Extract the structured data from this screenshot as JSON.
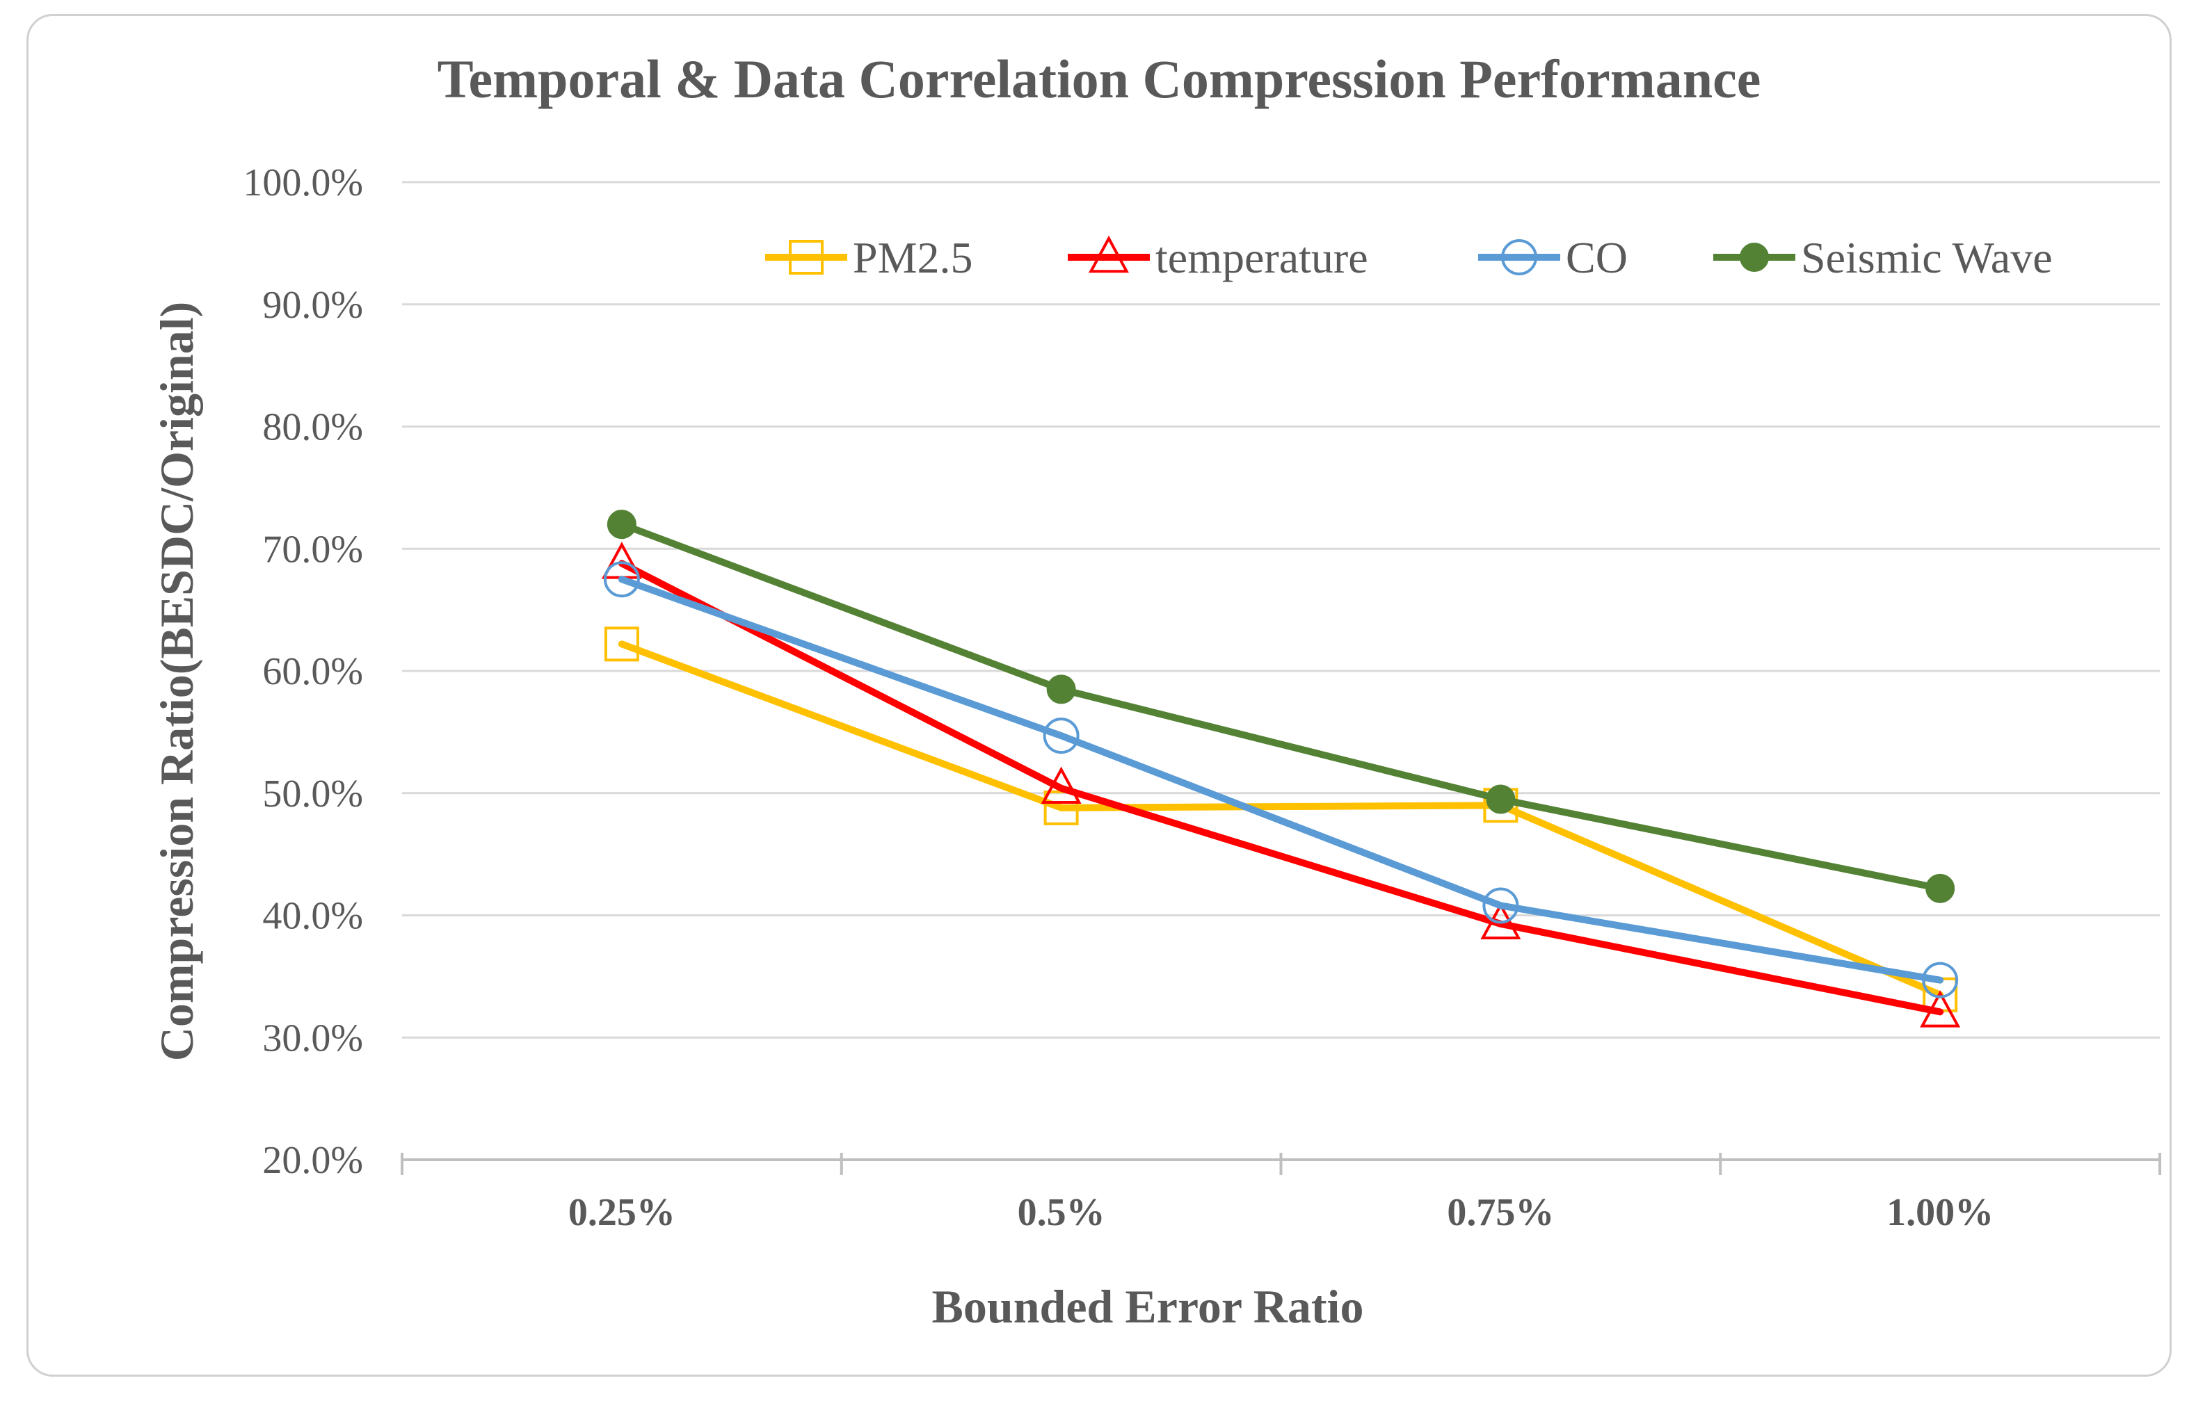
{
  "chart_data": {
    "type": "line",
    "title": "Temporal & Data Correlation Compression  Performance",
    "xlabel": "Bounded Error  Ratio",
    "ylabel": "Compression Ratio(BESDC/Original)",
    "categories": [
      "0.25%",
      "0.5%",
      "0.75%",
      "1.00%"
    ],
    "ylim": [
      20,
      100
    ],
    "ytick_step": 10,
    "ytick_labels": [
      "20.0%",
      "30.0%",
      "40.0%",
      "50.0%",
      "60.0%",
      "70.0%",
      "80.0%",
      "90.0%",
      "100.0%"
    ],
    "grid": true,
    "legend_position": "top-right",
    "series": [
      {
        "name": "PM2.5",
        "color": "#FFC000",
        "marker": "square",
        "filled": false,
        "values": [
          62.2,
          48.8,
          49.0,
          33.5
        ]
      },
      {
        "name": "temperature",
        "color": "#FF0000",
        "marker": "triangle",
        "filled": false,
        "values": [
          68.8,
          50.4,
          39.3,
          32.1
        ]
      },
      {
        "name": "CO",
        "color": "#5B9BD5",
        "marker": "circle",
        "filled": false,
        "values": [
          67.5,
          54.7,
          40.8,
          34.7
        ]
      },
      {
        "name": "Seismic Wave",
        "color": "#548235",
        "marker": "circle",
        "filled": true,
        "values": [
          72.0,
          58.5,
          49.5,
          42.2
        ]
      }
    ]
  }
}
